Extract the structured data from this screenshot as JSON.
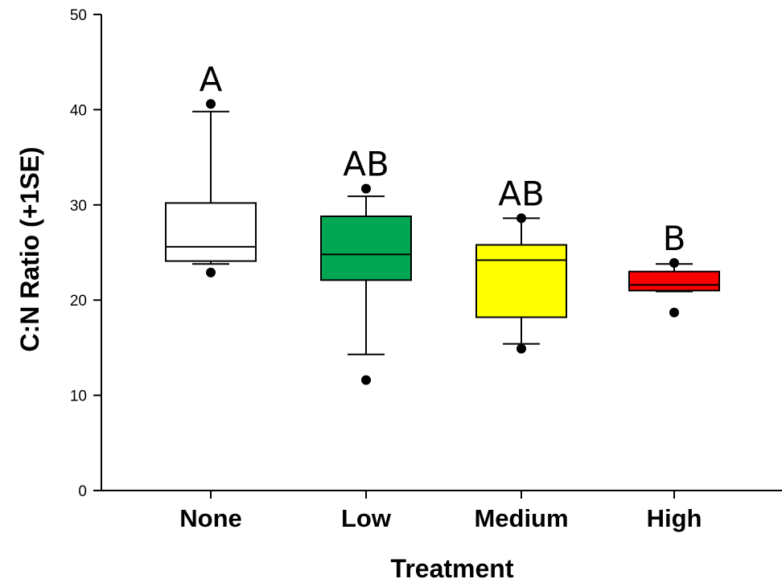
{
  "chart_data": {
    "type": "box",
    "xlabel": "Treatment",
    "ylabel": "C:N Ratio (+1SE)",
    "ylim": [
      0,
      50
    ],
    "yticks": [
      0,
      10,
      20,
      30,
      40,
      50
    ],
    "grid": false,
    "categories": [
      "None",
      "Low",
      "Medium",
      "High"
    ],
    "boxes": [
      {
        "category": "None",
        "color": "#ffffff",
        "whisker_low": 23.8,
        "q1": 24.1,
        "median": 25.6,
        "q3": 30.2,
        "whisker_high": 39.8,
        "outliers": [
          40.6,
          22.9
        ],
        "letter": "A"
      },
      {
        "category": "Low",
        "color": "#00a651",
        "whisker_low": 14.3,
        "q1": 22.1,
        "median": 24.8,
        "q3": 28.8,
        "whisker_high": 30.9,
        "outliers": [
          31.7,
          11.6
        ],
        "letter": "AB"
      },
      {
        "category": "Medium",
        "color": "#ffff00",
        "whisker_low": 15.4,
        "q1": 18.2,
        "median": 24.2,
        "q3": 25.8,
        "whisker_high": 28.6,
        "outliers": [
          28.6,
          14.9
        ],
        "letter": "AB"
      },
      {
        "category": "High",
        "color": "#ff0000",
        "whisker_low": 20.9,
        "q1": 21.0,
        "median": 21.6,
        "q3": 23.0,
        "whisker_high": 23.8,
        "outliers": [
          23.9,
          18.7
        ],
        "letter": "B"
      }
    ]
  }
}
